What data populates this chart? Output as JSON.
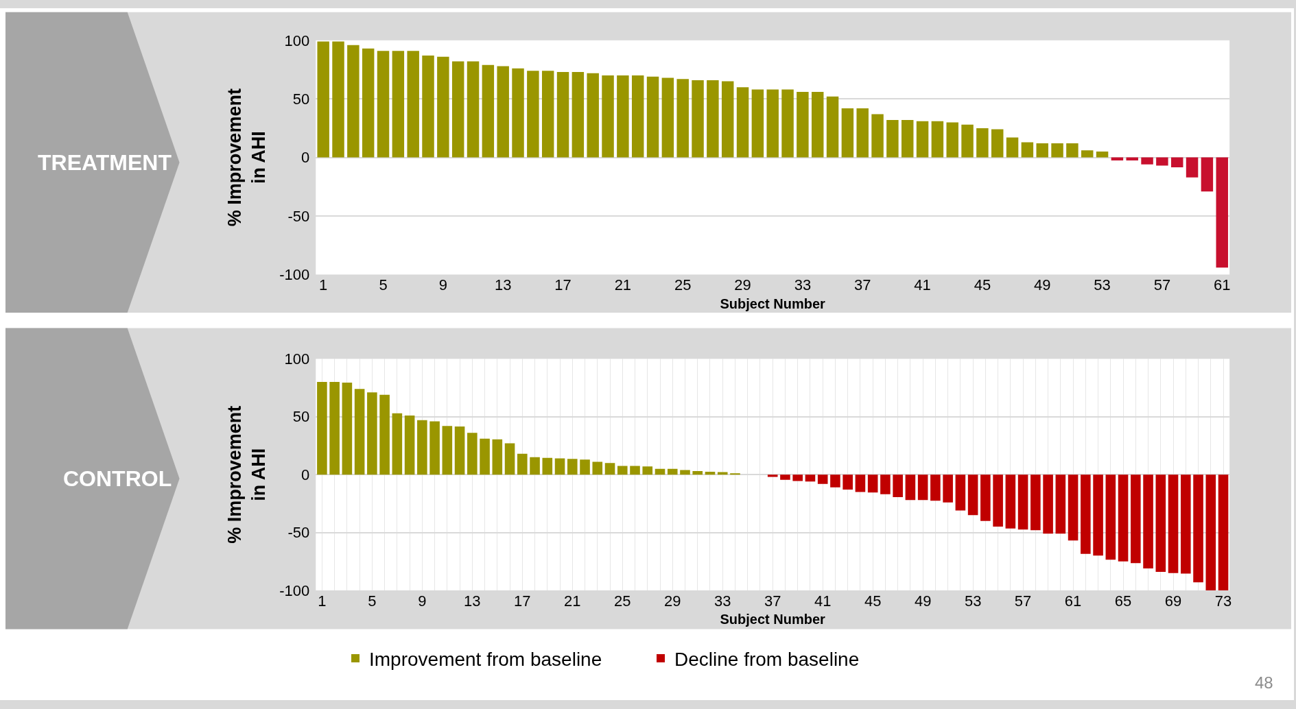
{
  "chart_data": [
    {
      "type": "bar",
      "title": "TREATMENT",
      "xlabel": "Subject Number",
      "ylabel": "% Improvement in AHI",
      "categories": [
        "1",
        null,
        null,
        null,
        "5",
        null,
        null,
        null,
        "9",
        null,
        null,
        null,
        "13",
        null,
        null,
        null,
        "17",
        null,
        null,
        null,
        "21",
        null,
        null,
        null,
        "25",
        null,
        null,
        null,
        "29",
        null,
        null,
        null,
        "33",
        null,
        null,
        null,
        "37",
        null,
        null,
        null,
        "41",
        null,
        null,
        null,
        "45",
        null,
        null,
        null,
        "49",
        null,
        null,
        null,
        "53",
        null,
        null,
        null,
        "57",
        null,
        null,
        null,
        "61"
      ],
      "series": [
        {
          "color": "#9a9600",
          "values": [
            99,
            99,
            96,
            93,
            91,
            91,
            91,
            87,
            86,
            82,
            82,
            79,
            78,
            76,
            74,
            74,
            73,
            73,
            72,
            70,
            70,
            70,
            69,
            68,
            67,
            66,
            66,
            65,
            60,
            58,
            58,
            58,
            56,
            56,
            52,
            42,
            42,
            37,
            32,
            32,
            31,
            31,
            30,
            28,
            25,
            24,
            17,
            13,
            12,
            12,
            12,
            6,
            5,
            null,
            null,
            null,
            null,
            null,
            null,
            null,
            null
          ]
        },
        {
          "color": "#c8102e",
          "values": [
            null,
            null,
            null,
            null,
            null,
            null,
            null,
            null,
            null,
            null,
            null,
            null,
            null,
            null,
            null,
            null,
            null,
            null,
            null,
            null,
            null,
            null,
            null,
            null,
            null,
            null,
            null,
            null,
            null,
            null,
            null,
            null,
            null,
            null,
            null,
            null,
            null,
            null,
            null,
            null,
            null,
            null,
            null,
            null,
            null,
            null,
            null,
            null,
            null,
            null,
            null,
            null,
            null,
            -2.5,
            -2.5,
            -6,
            -7,
            -8.5,
            -17,
            -29,
            -94
          ]
        }
      ],
      "ylim": [
        -100,
        100
      ],
      "yticks": [
        -100,
        -50,
        0,
        50,
        100
      ],
      "grid": "y",
      "legend": false
    },
    {
      "type": "bar",
      "title": "CONTROL",
      "xlabel": "Subject Number",
      "ylabel": "% Improvement in AHI",
      "categories": [
        "1",
        null,
        null,
        null,
        "5",
        null,
        null,
        null,
        "9",
        null,
        null,
        null,
        "13",
        null,
        null,
        null,
        "17",
        null,
        null,
        null,
        "21",
        null,
        null,
        null,
        "25",
        null,
        null,
        null,
        "29",
        null,
        null,
        null,
        "33",
        null,
        null,
        null,
        "37",
        null,
        null,
        null,
        "41",
        null,
        null,
        null,
        "45",
        null,
        null,
        null,
        "49",
        null,
        null,
        null,
        "53",
        null,
        null,
        null,
        "57",
        null,
        null,
        null,
        "61",
        null,
        null,
        null,
        "65",
        null,
        null,
        null,
        "69",
        null,
        null,
        null,
        "73"
      ],
      "series": [
        {
          "name": "Improvement from baseline",
          "color": "#9a9600",
          "values": [
            80,
            80,
            79.5,
            74,
            71,
            69,
            53,
            51,
            47,
            46,
            42,
            41.5,
            36,
            31,
            30.5,
            27,
            18,
            15,
            14.5,
            14,
            13.5,
            13,
            11,
            10,
            7.5,
            7.5,
            7,
            5,
            5,
            4,
            3,
            2.4,
            2.2,
            1,
            0,
            0,
            null,
            null,
            null,
            null,
            null,
            null,
            null,
            null,
            null,
            null,
            null,
            null,
            null,
            null,
            null,
            null,
            null,
            null,
            null,
            null,
            null,
            null,
            null,
            null,
            null,
            null,
            null,
            null,
            null,
            null,
            null,
            null,
            null,
            null,
            null,
            null,
            null
          ]
        },
        {
          "name": "Decline from baseline",
          "color": "#c00000",
          "values": [
            null,
            null,
            null,
            null,
            null,
            null,
            null,
            null,
            null,
            null,
            null,
            null,
            null,
            null,
            null,
            null,
            null,
            null,
            null,
            null,
            null,
            null,
            null,
            null,
            null,
            null,
            null,
            null,
            null,
            null,
            null,
            null,
            null,
            null,
            null,
            null,
            -2,
            -4.5,
            -5.5,
            -6,
            -8,
            -11,
            -13,
            -15,
            -15.5,
            -17,
            -19.5,
            -22,
            -22,
            -22.5,
            -24,
            -31,
            -35,
            -40,
            -45,
            -46.5,
            -47.5,
            -48,
            -51,
            -51,
            -57,
            -68.5,
            -70,
            -73.5,
            -75,
            -76.5,
            -81,
            -84,
            -85,
            -85.5,
            -93,
            -100,
            -100
          ]
        }
      ],
      "ylim": [
        -100,
        100
      ],
      "yticks": [
        -100,
        -50,
        0,
        50,
        100
      ],
      "grid": true,
      "legend": "bottom",
      "annotations": [
        "48"
      ]
    }
  ]
}
